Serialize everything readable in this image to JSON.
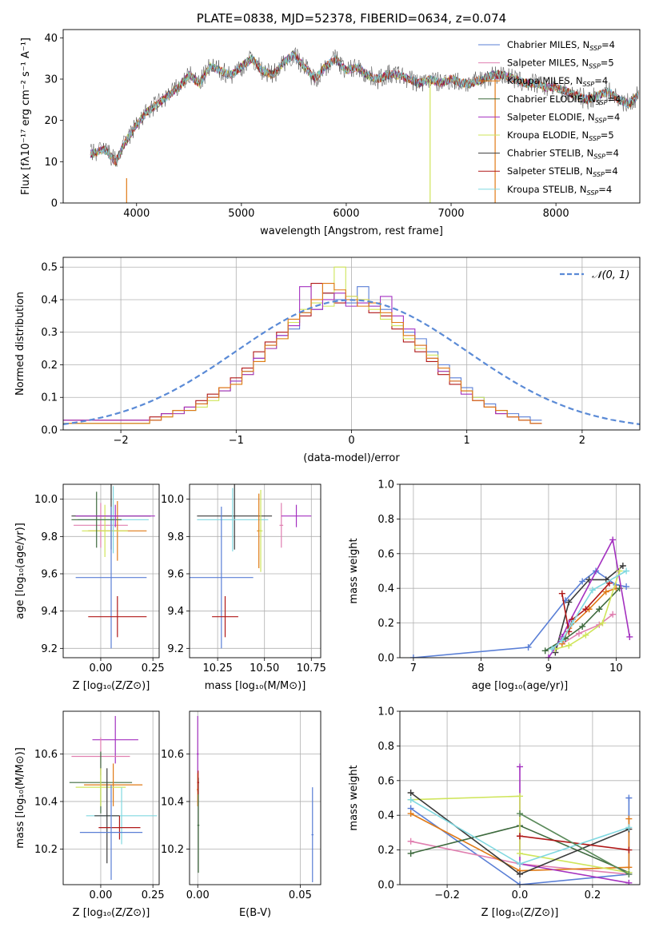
{
  "chart_data": [
    {
      "id": "spectrum",
      "type": "line",
      "title": "PLATE=0838, MJD=52378, FIBERID=0634, z=0.074",
      "xlabel": "wavelength [Angstrom, rest frame]",
      "ylabel": "Flux [fλ10⁻¹⁷ erg cm⁻² s⁻¹ A⁻¹]",
      "xlim": [
        3300,
        8800
      ],
      "ylim": [
        0,
        42
      ],
      "xticks": [
        4000,
        5000,
        6000,
        7000,
        8000
      ],
      "yticks": [
        0,
        10,
        20,
        30,
        40
      ],
      "grid": false,
      "legend": "top-right",
      "data_x": [
        3580,
        3700,
        3800,
        3900,
        4000,
        4100,
        4200,
        4300,
        4400,
        4500,
        4600,
        4700,
        4800,
        4900,
        5000,
        5100,
        5200,
        5300,
        5400,
        5500,
        5600,
        5700,
        5800,
        5900,
        6000,
        6100,
        6200,
        6300,
        6400,
        6500,
        6600,
        6700,
        6800,
        6900,
        7000,
        7100,
        7200,
        7300,
        7400,
        7500,
        7600,
        7700,
        7800,
        7900,
        8000,
        8100,
        8200,
        8300,
        8400,
        8500,
        8600,
        8700,
        8780
      ],
      "data_y": [
        12,
        13,
        10,
        15,
        19,
        22,
        24,
        26,
        28,
        31,
        29,
        33,
        32,
        31,
        33,
        35,
        32,
        31,
        34,
        36,
        33,
        30,
        33,
        35,
        32,
        33,
        31,
        30,
        31,
        31,
        30,
        29,
        30,
        29,
        30,
        29,
        29,
        30,
        31,
        31,
        30,
        29,
        29,
        28,
        28,
        27,
        26,
        25,
        26,
        27,
        25,
        24,
        26
      ],
      "series": [
        {
          "name": "Chabrier MILES, N$SSP=4",
          "color": "#5a7fd6"
        },
        {
          "name": "Salpeter MILES, N$SSP=5",
          "color": "#e07fb0"
        },
        {
          "name": "Kroupa MILES, N$SSP=4",
          "color": "#e07a16"
        },
        {
          "name": "Chabrier ELODIE, N$SSP=4",
          "color": "#3e6a3e"
        },
        {
          "name": "Salpeter ELODIE, N$SSP=4",
          "color": "#a431c0"
        },
        {
          "name": "Kroupa ELODIE, N$SSP=5",
          "color": "#cfe55a"
        },
        {
          "name": "Chabrier STELIB, N$SSP=4",
          "color": "#3a3a3a"
        },
        {
          "name": "Salpeter STELIB, N$SSP=4",
          "color": "#b01818"
        },
        {
          "name": "Kroupa STELIB, N$SSP=4",
          "color": "#80d8e0"
        }
      ]
    },
    {
      "id": "residuals",
      "type": "line",
      "xlabel": "(data-model)/error",
      "ylabel": "Normed distribution",
      "xlim": [
        -2.5,
        2.5
      ],
      "ylim": [
        0,
        0.53
      ],
      "xticks": [
        -2,
        -1,
        0,
        1,
        2
      ],
      "yticks": [
        0.0,
        0.1,
        0.2,
        0.3,
        0.4,
        0.5
      ],
      "grid": true,
      "legend": "top-right",
      "legend_label": "𝒩(0, 1)",
      "gaussian_color": "#5a8ad6",
      "bin_width": 0.1,
      "histograms": [
        {
          "color": "#5a7fd6",
          "values": [
            0.02,
            0.03,
            0.05,
            0.06,
            0.06,
            0.08,
            0.1,
            0.12,
            0.15,
            0.18,
            0.22,
            0.26,
            0.29,
            0.31,
            0.36,
            0.37,
            0.42,
            0.4,
            0.39,
            0.44,
            0.38,
            0.37,
            0.33,
            0.3,
            0.28,
            0.24,
            0.2,
            0.16,
            0.13,
            0.1,
            0.08,
            0.06,
            0.05,
            0.04,
            0.03
          ]
        },
        {
          "color": "#b01818",
          "values": [
            0.03,
            0.04,
            0.05,
            0.06,
            0.07,
            0.09,
            0.11,
            0.13,
            0.16,
            0.19,
            0.24,
            0.27,
            0.3,
            0.33,
            0.35,
            0.45,
            0.42,
            0.39,
            0.41,
            0.4,
            0.36,
            0.35,
            0.31,
            0.27,
            0.24,
            0.21,
            0.17,
            0.14,
            0.12,
            0.09,
            0.07,
            0.05,
            0.04,
            0.03,
            0.02
          ]
        },
        {
          "color": "#cfe55a",
          "values": [
            0.02,
            0.03,
            0.04,
            0.05,
            0.06,
            0.07,
            0.09,
            0.12,
            0.14,
            0.17,
            0.21,
            0.25,
            0.28,
            0.33,
            0.37,
            0.39,
            0.38,
            0.5,
            0.41,
            0.4,
            0.37,
            0.34,
            0.32,
            0.28,
            0.25,
            0.23,
            0.18,
            0.15,
            0.12,
            0.1,
            0.07,
            0.06,
            0.04,
            0.03,
            0.02
          ]
        },
        {
          "color": "#a431c0",
          "values": [
            0.03,
            0.03,
            0.05,
            0.05,
            0.07,
            0.08,
            0.1,
            0.12,
            0.15,
            0.17,
            0.22,
            0.25,
            0.29,
            0.32,
            0.44,
            0.37,
            0.4,
            0.42,
            0.38,
            0.39,
            0.38,
            0.41,
            0.35,
            0.31,
            0.26,
            0.22,
            0.18,
            0.15,
            0.11,
            0.09,
            0.07,
            0.05,
            0.04,
            0.03,
            0.02
          ]
        },
        {
          "color": "#e07a16",
          "values": [
            0.02,
            0.03,
            0.04,
            0.06,
            0.06,
            0.08,
            0.1,
            0.13,
            0.14,
            0.18,
            0.21,
            0.26,
            0.28,
            0.34,
            0.36,
            0.4,
            0.45,
            0.43,
            0.4,
            0.38,
            0.39,
            0.36,
            0.33,
            0.29,
            0.26,
            0.22,
            0.19,
            0.15,
            0.12,
            0.09,
            0.07,
            0.06,
            0.04,
            0.03,
            0.02
          ]
        }
      ]
    },
    {
      "id": "age-vs-Z",
      "type": "scatter",
      "xlabel": "Z [log₁₀(Z/Z⊙)]",
      "ylabel": "age  [log₁₀(age/yr)]",
      "xlim": [
        -0.18,
        0.28
      ],
      "ylim": [
        9.15,
        10.08
      ],
      "xticks": [
        0.0,
        0.25
      ],
      "xticklabels": [
        "0.00",
        "0.25"
      ],
      "yticks": [
        9.2,
        9.4,
        9.6,
        9.8,
        10.0
      ],
      "grid": true,
      "points": [
        {
          "color": "#3a3a3a",
          "x": 0.05,
          "y": 9.91,
          "xerr": 0.19,
          "yerr": 0.18
        },
        {
          "color": "#e07fb0",
          "x": 0.0,
          "y": 9.86,
          "xerr": 0.13,
          "yerr": 0.12
        },
        {
          "color": "#e07a16",
          "x": 0.08,
          "y": 9.83,
          "xerr": 0.14,
          "yerr": 0.16
        },
        {
          "color": "#cfe55a",
          "x": 0.02,
          "y": 9.83,
          "xerr": 0.11,
          "yerr": 0.14
        },
        {
          "color": "#80d8e0",
          "x": 0.06,
          "y": 9.89,
          "xerr": 0.17,
          "yerr": 0.18
        },
        {
          "color": "#5a7fd6",
          "x": 0.05,
          "y": 9.58,
          "xerr": 0.17,
          "yerr": 0.38
        },
        {
          "color": "#b01818",
          "x": 0.08,
          "y": 9.37,
          "xerr": 0.14,
          "yerr": 0.11
        },
        {
          "color": "#3e6a3e",
          "x": -0.02,
          "y": 9.89,
          "xerr": 0.12,
          "yerr": 0.15
        },
        {
          "color": "#a431c0",
          "x": 0.07,
          "y": 9.91,
          "xerr": 0.19,
          "yerr": 0.06
        }
      ]
    },
    {
      "id": "age-vs-mass",
      "type": "scatter",
      "xlabel": "mass [log₁₀(M/M⊙)]",
      "xlim": [
        10.1,
        10.8
      ],
      "ylim": [
        9.15,
        10.08
      ],
      "xticks": [
        10.25,
        10.5,
        10.75
      ],
      "xticklabels": [
        "10.25",
        "10.50",
        "10.75"
      ],
      "yticks": [
        9.2,
        9.4,
        9.6,
        9.8,
        10.0
      ],
      "grid": true,
      "points": [
        {
          "color": "#3a3a3a",
          "x": 10.34,
          "y": 9.91,
          "xerr": 0.2,
          "yerr": 0.18
        },
        {
          "color": "#80d8e0",
          "x": 10.33,
          "y": 9.89,
          "xerr": 0.19,
          "yerr": 0.17
        },
        {
          "color": "#5a7fd6",
          "x": 10.27,
          "y": 9.58,
          "xerr": 0.17,
          "yerr": 0.38
        },
        {
          "color": "#b01818",
          "x": 10.29,
          "y": 9.37,
          "xerr": 0.07,
          "yerr": 0.11
        },
        {
          "color": "#e07a16",
          "x": 10.47,
          "y": 9.83,
          "xerr": 0.01,
          "yerr": 0.2
        },
        {
          "color": "#cfe55a",
          "x": 10.48,
          "y": 9.83,
          "xerr": 0.01,
          "yerr": 0.22
        },
        {
          "color": "#e07fb0",
          "x": 10.59,
          "y": 9.86,
          "xerr": 0.01,
          "yerr": 0.12
        },
        {
          "color": "#a431c0",
          "x": 10.67,
          "y": 9.91,
          "xerr": 0.08,
          "yerr": 0.06
        }
      ]
    },
    {
      "id": "mass-weight-vs-age",
      "type": "line",
      "xlabel": "age  [log₁₀(age/yr)]",
      "ylabel": "mass weight",
      "xlim": [
        6.8,
        10.35
      ],
      "ylim": [
        0,
        1
      ],
      "xticks": [
        7,
        8,
        9,
        10
      ],
      "yticks": [
        0.0,
        0.2,
        0.4,
        0.6,
        0.8,
        1.0
      ],
      "grid": true,
      "series": [
        {
          "color": "#5a7fd6",
          "x": [
            7.0,
            8.7,
            9.25,
            9.5,
            9.7,
            10.0,
            10.15
          ],
          "y": [
            0.0,
            0.06,
            0.33,
            0.44,
            0.5,
            0.42,
            0.41
          ]
        },
        {
          "color": "#3a3a3a",
          "x": [
            9.1,
            9.3,
            9.6,
            9.85,
            10.1
          ],
          "y": [
            0.03,
            0.32,
            0.45,
            0.45,
            0.53
          ]
        },
        {
          "color": "#e07fb0",
          "x": [
            9.2,
            9.45,
            9.75,
            9.95
          ],
          "y": [
            0.08,
            0.14,
            0.19,
            0.25
          ]
        },
        {
          "color": "#e07a16",
          "x": [
            9.2,
            9.3,
            9.6,
            9.85,
            10.0
          ],
          "y": [
            0.08,
            0.17,
            0.28,
            0.38,
            0.4
          ]
        },
        {
          "color": "#3e6a3e",
          "x": [
            8.95,
            9.25,
            9.5,
            9.75,
            10.05
          ],
          "y": [
            0.04,
            0.11,
            0.18,
            0.28,
            0.4
          ]
        },
        {
          "color": "#a431c0",
          "x": [
            9.0,
            9.2,
            9.3,
            9.95,
            10.2
          ],
          "y": [
            0.0,
            0.12,
            0.2,
            0.68,
            0.12
          ]
        },
        {
          "color": "#cfe55a",
          "x": [
            9.1,
            9.3,
            9.55,
            9.8,
            10.05
          ],
          "y": [
            0.05,
            0.07,
            0.13,
            0.2,
            0.5
          ]
        },
        {
          "color": "#b01818",
          "x": [
            9.2,
            9.3,
            9.35,
            9.55,
            9.9
          ],
          "y": [
            0.37,
            0.15,
            0.22,
            0.28,
            0.43
          ]
        },
        {
          "color": "#80d8e0",
          "x": [
            9.05,
            9.2,
            9.35,
            9.65,
            10.15
          ],
          "y": [
            0.05,
            0.1,
            0.2,
            0.39,
            0.5
          ]
        }
      ]
    },
    {
      "id": "mass-vs-Z",
      "type": "scatter",
      "xlabel": "Z [log₁₀(Z/Z⊙)]",
      "ylabel": "mass [log₁₀(M/M⊙)]",
      "xlim": [
        -0.18,
        0.28
      ],
      "ylim": [
        10.05,
        10.78
      ],
      "xticks": [
        0.0,
        0.25
      ],
      "xticklabels": [
        "0.00",
        "0.25"
      ],
      "yticks": [
        10.2,
        10.4,
        10.6
      ],
      "grid": true,
      "points": [
        {
          "color": "#a431c0",
          "x": 0.07,
          "y": 10.66,
          "xerr": 0.11,
          "yerr": 0.1
        },
        {
          "color": "#e07fb0",
          "x": 0.0,
          "y": 10.59,
          "xerr": 0.14,
          "yerr": 0.08
        },
        {
          "color": "#3e6a3e",
          "x": 0.0,
          "y": 10.48,
          "xerr": 0.15,
          "yerr": 0.13
        },
        {
          "color": "#e07a16",
          "x": 0.06,
          "y": 10.47,
          "xerr": 0.14,
          "yerr": 0.09
        },
        {
          "color": "#cfe55a",
          "x": 0.0,
          "y": 10.46,
          "xerr": 0.12,
          "yerr": 0.08
        },
        {
          "color": "#80d8e0",
          "x": 0.1,
          "y": 10.34,
          "xerr": 0.17,
          "yerr": 0.12
        },
        {
          "color": "#3a3a3a",
          "x": 0.03,
          "y": 10.34,
          "xerr": 0.06,
          "yerr": 0.2
        },
        {
          "color": "#b01818",
          "x": 0.09,
          "y": 10.29,
          "xerr": 0.1,
          "yerr": 0.05
        },
        {
          "color": "#5a7fd6",
          "x": 0.05,
          "y": 10.27,
          "xerr": 0.15,
          "yerr": 0.2
        }
      ]
    },
    {
      "id": "mass-vs-ebv",
      "type": "scatter",
      "xlabel": "E(B-V)",
      "xlim": [
        -0.004,
        0.06
      ],
      "ylim": [
        10.05,
        10.78
      ],
      "xticks": [
        0.0,
        0.05
      ],
      "xticklabels": [
        "0.00",
        "0.05"
      ],
      "yticks": [
        10.2,
        10.4,
        10.6
      ],
      "grid": true,
      "points": [
        {
          "color": "#a431c0",
          "x": 0.0,
          "y": 10.6,
          "xerr": 0.0005,
          "yerr": 0.16
        },
        {
          "color": "#e07a16",
          "x": 0.0,
          "y": 10.45,
          "xerr": 0.0005,
          "yerr": 0.07
        },
        {
          "color": "#3e6a3e",
          "x": 0.0003,
          "y": 10.3,
          "xerr": 0.0005,
          "yerr": 0.2
        },
        {
          "color": "#b01818",
          "x": 0.0002,
          "y": 10.48,
          "xerr": 0.0005,
          "yerr": 0.05
        },
        {
          "color": "#5a7fd6",
          "x": 0.056,
          "y": 10.26,
          "xerr": 0.0005,
          "yerr": 0.2
        }
      ]
    },
    {
      "id": "mass-weight-vs-Z",
      "type": "line",
      "xlabel": "Z [log₁₀(Z/Z⊙)]",
      "ylabel": "mass weight",
      "xlim": [
        -0.33,
        0.33
      ],
      "ylim": [
        0,
        1
      ],
      "xticks": [
        -0.2,
        0.0,
        0.2
      ],
      "yticks": [
        0.0,
        0.2,
        0.4,
        0.6,
        0.8,
        1.0
      ],
      "grid": true,
      "series": [
        {
          "color": "#5a7fd6",
          "x": [
            -0.3,
            0.0,
            0.3,
            0.3
          ],
          "y": [
            0.44,
            0.0,
            0.06,
            0.5
          ]
        },
        {
          "color": "#e07fb0",
          "x": [
            -0.3,
            0.0,
            0.3
          ],
          "y": [
            0.25,
            0.12,
            0.06
          ]
        },
        {
          "color": "#e07a16",
          "x": [
            -0.3,
            0.0,
            0.3,
            0.3
          ],
          "y": [
            0.41,
            0.08,
            0.1,
            0.38
          ]
        },
        {
          "color": "#3e6a3e",
          "x": [
            -0.3,
            0.0,
            0.3
          ],
          "y": [
            0.18,
            0.34,
            0.07
          ]
        },
        {
          "color": "#a431c0",
          "x": [
            0.0,
            0.0,
            0.3
          ],
          "y": [
            0.68,
            0.12,
            0.01
          ]
        },
        {
          "color": "#cfe55a",
          "x": [
            -0.3,
            0.0,
            0.0,
            0.3
          ],
          "y": [
            0.49,
            0.51,
            0.18,
            0.07
          ]
        },
        {
          "color": "#3a3a3a",
          "x": [
            -0.3,
            0.0,
            0.3
          ],
          "y": [
            0.53,
            0.06,
            0.32
          ]
        },
        {
          "color": "#b01818",
          "x": [
            0.0,
            0.3
          ],
          "y": [
            0.28,
            0.2
          ]
        },
        {
          "color": "#80d8e0",
          "x": [
            -0.3,
            0.0,
            0.3
          ],
          "y": [
            0.49,
            0.12,
            0.33
          ]
        },
        {
          "color": "#5a8a5a",
          "x": [
            0.0,
            0.3
          ],
          "y": [
            0.41,
            0.06
          ]
        }
      ]
    }
  ]
}
